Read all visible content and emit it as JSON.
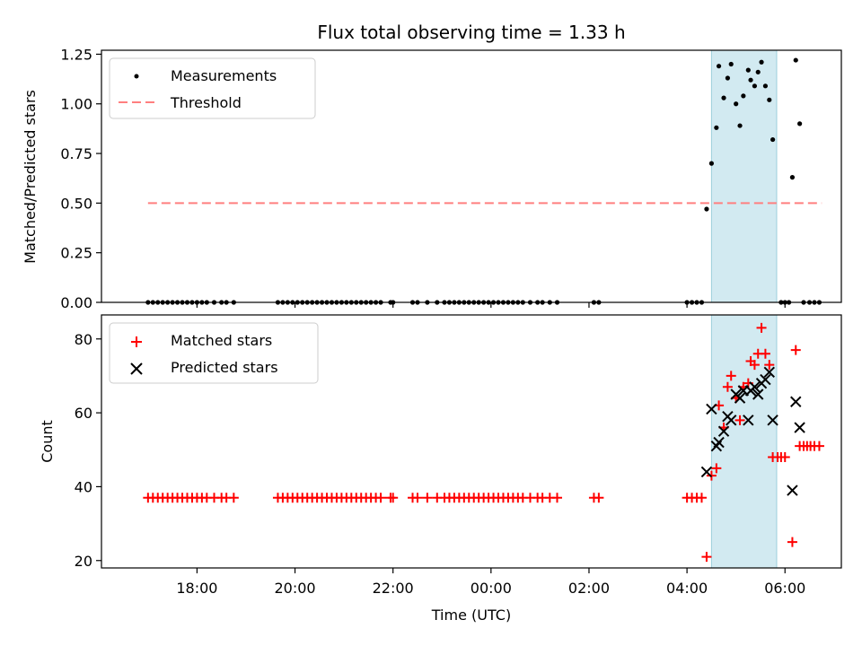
{
  "chart_data": {
    "title": "Flux total observing time = 1.33 h",
    "xlabel": "Time (UTC)",
    "xlim_hours": [
      16.05,
      31.15
    ],
    "x_ticks": [
      {
        "label": "18:00",
        "hour": 18
      },
      {
        "label": "20:00",
        "hour": 20
      },
      {
        "label": "22:00",
        "hour": 22
      },
      {
        "label": "00:00",
        "hour": 24
      },
      {
        "label": "02:00",
        "hour": 26
      },
      {
        "label": "04:00",
        "hour": 28
      },
      {
        "label": "06:00",
        "hour": 30
      }
    ],
    "observing_window_hours": [
      28.5,
      29.83
    ],
    "panels": [
      {
        "type": "scatter",
        "ylabel": "Matched/Predicted stars",
        "ylim": [
          0,
          1.27
        ],
        "y_ticks": [
          "0.00",
          "0.25",
          "0.50",
          "0.75",
          "1.00",
          "1.25"
        ],
        "legend_position": "upper-left",
        "legend": {
          "measurements": "Measurements",
          "threshold": "Threshold"
        },
        "threshold": {
          "value": 0.5,
          "x_range": [
            17.0,
            30.75
          ],
          "color": "#ff7f7f"
        },
        "measurements": {
          "color": "#000000",
          "points": [
            [
              17.0,
              0.0
            ],
            [
              17.1,
              0.0
            ],
            [
              17.2,
              0.0
            ],
            [
              17.3,
              0.0
            ],
            [
              17.4,
              0.0
            ],
            [
              17.5,
              0.0
            ],
            [
              17.6,
              0.0
            ],
            [
              17.7,
              0.0
            ],
            [
              17.8,
              0.0
            ],
            [
              17.9,
              0.0
            ],
            [
              18.0,
              0.0
            ],
            [
              18.1,
              0.0
            ],
            [
              18.2,
              0.0
            ],
            [
              18.35,
              0.0
            ],
            [
              18.5,
              0.0
            ],
            [
              18.6,
              0.0
            ],
            [
              18.75,
              0.0
            ],
            [
              19.65,
              0.0
            ],
            [
              19.75,
              0.0
            ],
            [
              19.85,
              0.0
            ],
            [
              19.95,
              0.0
            ],
            [
              20.05,
              0.0
            ],
            [
              20.15,
              0.0
            ],
            [
              20.25,
              0.0
            ],
            [
              20.35,
              0.0
            ],
            [
              20.45,
              0.0
            ],
            [
              20.55,
              0.0
            ],
            [
              20.65,
              0.0
            ],
            [
              20.75,
              0.0
            ],
            [
              20.85,
              0.0
            ],
            [
              20.95,
              0.0
            ],
            [
              21.05,
              0.0
            ],
            [
              21.15,
              0.0
            ],
            [
              21.25,
              0.0
            ],
            [
              21.35,
              0.0
            ],
            [
              21.45,
              0.0
            ],
            [
              21.55,
              0.0
            ],
            [
              21.65,
              0.0
            ],
            [
              21.75,
              0.0
            ],
            [
              21.95,
              0.0
            ],
            [
              22.0,
              0.0
            ],
            [
              22.4,
              0.0
            ],
            [
              22.5,
              0.0
            ],
            [
              22.7,
              0.0
            ],
            [
              22.9,
              0.0
            ],
            [
              23.05,
              0.0
            ],
            [
              23.15,
              0.0
            ],
            [
              23.25,
              0.0
            ],
            [
              23.35,
              0.0
            ],
            [
              23.45,
              0.0
            ],
            [
              23.55,
              0.0
            ],
            [
              23.65,
              0.0
            ],
            [
              23.75,
              0.0
            ],
            [
              23.85,
              0.0
            ],
            [
              23.95,
              0.0
            ],
            [
              24.05,
              0.0
            ],
            [
              24.15,
              0.0
            ],
            [
              24.25,
              0.0
            ],
            [
              24.35,
              0.0
            ],
            [
              24.45,
              0.0
            ],
            [
              24.55,
              0.0
            ],
            [
              24.65,
              0.0
            ],
            [
              24.8,
              0.0
            ],
            [
              24.95,
              0.0
            ],
            [
              25.05,
              0.0
            ],
            [
              25.2,
              0.0
            ],
            [
              25.35,
              0.0
            ],
            [
              26.1,
              0.0
            ],
            [
              26.2,
              0.0
            ],
            [
              28.0,
              0.0
            ],
            [
              28.1,
              0.0
            ],
            [
              28.2,
              0.0
            ],
            [
              28.3,
              0.0
            ],
            [
              28.4,
              0.47
            ],
            [
              28.5,
              0.7
            ],
            [
              28.6,
              0.88
            ],
            [
              28.65,
              1.19
            ],
            [
              28.75,
              1.03
            ],
            [
              28.83,
              1.13
            ],
            [
              28.9,
              1.2
            ],
            [
              29.0,
              1.0
            ],
            [
              29.08,
              0.89
            ],
            [
              29.15,
              1.04
            ],
            [
              29.25,
              1.17
            ],
            [
              29.3,
              1.12
            ],
            [
              29.38,
              1.09
            ],
            [
              29.45,
              1.16
            ],
            [
              29.52,
              1.21
            ],
            [
              29.6,
              1.09
            ],
            [
              29.68,
              1.02
            ],
            [
              29.75,
              0.82
            ],
            [
              29.92,
              0.0
            ],
            [
              30.0,
              0.0
            ],
            [
              30.08,
              0.0
            ],
            [
              30.15,
              0.63
            ],
            [
              30.22,
              1.22
            ],
            [
              30.3,
              0.9
            ],
            [
              30.38,
              0.0
            ],
            [
              30.5,
              0.0
            ],
            [
              30.6,
              0.0
            ],
            [
              30.7,
              0.0
            ]
          ]
        }
      },
      {
        "type": "scatter",
        "ylabel": "Count",
        "ylim": [
          18,
          86.5
        ],
        "y_ticks": [
          "20",
          "40",
          "60",
          "80"
        ],
        "legend_position": "upper-left",
        "legend": {
          "matched": "Matched stars",
          "predicted": "Predicted stars"
        },
        "matched": {
          "color": "#ff0000",
          "marker": "+",
          "points": [
            [
              17.0,
              37
            ],
            [
              17.1,
              37
            ],
            [
              17.2,
              37
            ],
            [
              17.3,
              37
            ],
            [
              17.4,
              37
            ],
            [
              17.5,
              37
            ],
            [
              17.6,
              37
            ],
            [
              17.7,
              37
            ],
            [
              17.8,
              37
            ],
            [
              17.9,
              37
            ],
            [
              18.0,
              37
            ],
            [
              18.1,
              37
            ],
            [
              18.2,
              37
            ],
            [
              18.35,
              37
            ],
            [
              18.5,
              37
            ],
            [
              18.6,
              37
            ],
            [
              18.75,
              37
            ],
            [
              19.65,
              37
            ],
            [
              19.75,
              37
            ],
            [
              19.85,
              37
            ],
            [
              19.95,
              37
            ],
            [
              20.05,
              37
            ],
            [
              20.15,
              37
            ],
            [
              20.25,
              37
            ],
            [
              20.35,
              37
            ],
            [
              20.45,
              37
            ],
            [
              20.55,
              37
            ],
            [
              20.65,
              37
            ],
            [
              20.75,
              37
            ],
            [
              20.85,
              37
            ],
            [
              20.95,
              37
            ],
            [
              21.05,
              37
            ],
            [
              21.15,
              37
            ],
            [
              21.25,
              37
            ],
            [
              21.35,
              37
            ],
            [
              21.45,
              37
            ],
            [
              21.55,
              37
            ],
            [
              21.65,
              37
            ],
            [
              21.75,
              37
            ],
            [
              21.95,
              37
            ],
            [
              22.0,
              37
            ],
            [
              22.4,
              37
            ],
            [
              22.5,
              37
            ],
            [
              22.7,
              37
            ],
            [
              22.9,
              37
            ],
            [
              23.05,
              37
            ],
            [
              23.15,
              37
            ],
            [
              23.25,
              37
            ],
            [
              23.35,
              37
            ],
            [
              23.45,
              37
            ],
            [
              23.55,
              37
            ],
            [
              23.65,
              37
            ],
            [
              23.75,
              37
            ],
            [
              23.85,
              37
            ],
            [
              23.95,
              37
            ],
            [
              24.05,
              37
            ],
            [
              24.15,
              37
            ],
            [
              24.25,
              37
            ],
            [
              24.35,
              37
            ],
            [
              24.45,
              37
            ],
            [
              24.55,
              37
            ],
            [
              24.65,
              37
            ],
            [
              24.8,
              37
            ],
            [
              24.95,
              37
            ],
            [
              25.05,
              37
            ],
            [
              25.2,
              37
            ],
            [
              25.35,
              37
            ],
            [
              26.1,
              37
            ],
            [
              26.2,
              37
            ],
            [
              28.0,
              37
            ],
            [
              28.1,
              37
            ],
            [
              28.2,
              37
            ],
            [
              28.3,
              37
            ],
            [
              28.4,
              21
            ],
            [
              28.5,
              43
            ],
            [
              28.6,
              45
            ],
            [
              28.65,
              62
            ],
            [
              28.75,
              56
            ],
            [
              28.83,
              67
            ],
            [
              28.9,
              70
            ],
            [
              29.0,
              64
            ],
            [
              29.08,
              58
            ],
            [
              29.15,
              67
            ],
            [
              29.25,
              68
            ],
            [
              29.3,
              74
            ],
            [
              29.38,
              73
            ],
            [
              29.45,
              76
            ],
            [
              29.52,
              83
            ],
            [
              29.6,
              76
            ],
            [
              29.68,
              73
            ],
            [
              29.75,
              48
            ],
            [
              29.85,
              48
            ],
            [
              29.92,
              48
            ],
            [
              30.0,
              48
            ],
            [
              30.15,
              25
            ],
            [
              30.22,
              77
            ],
            [
              30.3,
              51
            ],
            [
              30.38,
              51
            ],
            [
              30.45,
              51
            ],
            [
              30.52,
              51
            ],
            [
              30.6,
              51
            ],
            [
              30.7,
              51
            ]
          ]
        },
        "predicted": {
          "color": "#000000",
          "marker": "x",
          "points": [
            [
              28.4,
              44
            ],
            [
              28.5,
              61
            ],
            [
              28.6,
              51
            ],
            [
              28.65,
              52
            ],
            [
              28.75,
              55
            ],
            [
              28.83,
              59
            ],
            [
              28.9,
              58
            ],
            [
              29.0,
              65
            ],
            [
              29.08,
              64
            ],
            [
              29.15,
              66
            ],
            [
              29.25,
              58
            ],
            [
              29.3,
              66
            ],
            [
              29.38,
              67
            ],
            [
              29.45,
              65
            ],
            [
              29.52,
              68
            ],
            [
              29.6,
              69
            ],
            [
              29.68,
              71
            ],
            [
              29.75,
              58
            ],
            [
              30.15,
              39
            ],
            [
              30.22,
              63
            ],
            [
              30.3,
              56
            ]
          ]
        }
      }
    ]
  }
}
